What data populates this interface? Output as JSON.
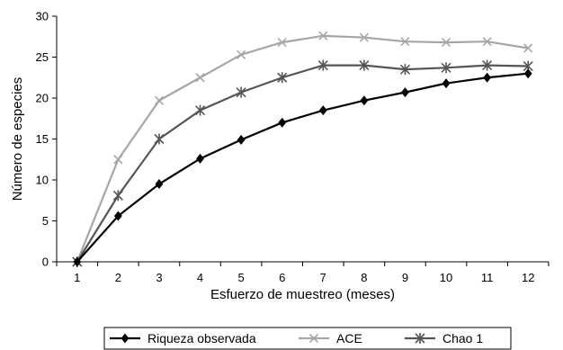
{
  "chart_data": {
    "type": "line",
    "title": "",
    "xlabel": "Esfuerzo de muestreo (meses)",
    "ylabel": "Número de especies",
    "x": [
      1,
      2,
      3,
      4,
      5,
      6,
      7,
      8,
      9,
      10,
      11,
      12
    ],
    "xlim": [
      0.5,
      12.5
    ],
    "ylim": [
      0,
      30
    ],
    "yticks": [
      0,
      5,
      10,
      15,
      20,
      25,
      30
    ],
    "grid": false,
    "legend_position": "bottom",
    "series": [
      {
        "name": "Riqueza observada",
        "marker": "diamond",
        "color": "#000000",
        "values": [
          0,
          5.6,
          9.5,
          12.6,
          14.9,
          17,
          18.5,
          19.7,
          20.7,
          21.8,
          22.5,
          23
        ]
      },
      {
        "name": "ACE",
        "marker": "x",
        "color": "#a6a6a6",
        "values": [
          0,
          12.5,
          19.7,
          22.5,
          25.3,
          26.8,
          27.6,
          27.4,
          26.9,
          26.8,
          26.9,
          26.1
        ]
      },
      {
        "name": "Chao 1",
        "marker": "star",
        "color": "#555555",
        "values": [
          0,
          8.1,
          15,
          18.5,
          20.7,
          22.5,
          24,
          24,
          23.5,
          23.7,
          24,
          23.9
        ]
      }
    ]
  }
}
